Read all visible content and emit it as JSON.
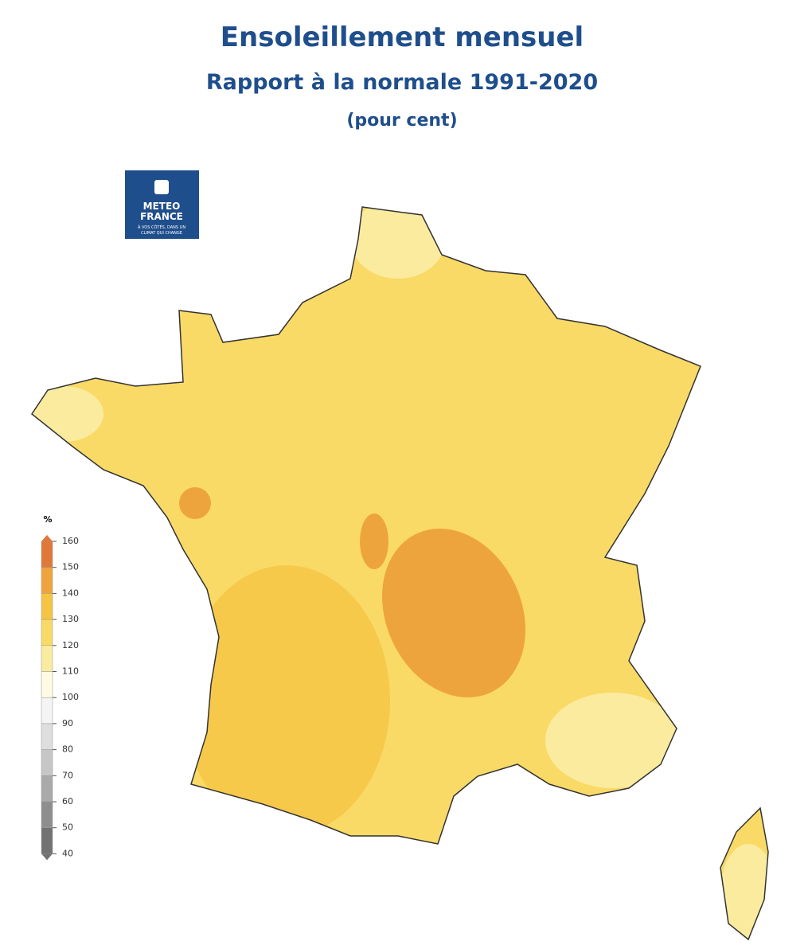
{
  "title": "Ensoleillement mensuel",
  "subtitle": "Rapport à la normale 1991-2020",
  "unit_note": "(pour cent)",
  "logo": {
    "lines": [
      "METEO",
      "FRANCE"
    ],
    "tagline": [
      "À VOS CÔTÉS, DANS UN",
      "CLIMAT QUI CHANGE"
    ]
  },
  "legend": {
    "unit": "%",
    "ticks": [
      160,
      150,
      140,
      130,
      120,
      110,
      100,
      90,
      80,
      70,
      60,
      50,
      40
    ],
    "colors": [
      "#e0783a",
      "#eea43c",
      "#f6c443",
      "#f9da66",
      "#faeb9f",
      "#fefbe2",
      "#f4f4f4",
      "#dedede",
      "#c6c6c6",
      "#aaaaaa",
      "#8e8e8e",
      "#727272"
    ]
  }
}
